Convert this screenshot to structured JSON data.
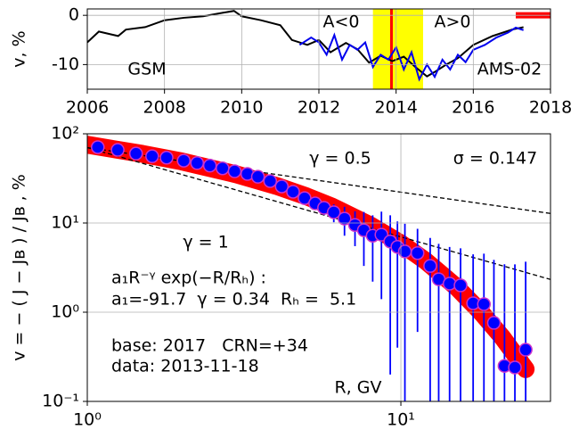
{
  "chart_data": [
    {
      "type": "line",
      "ylabel": "v, %",
      "xlim": [
        2006,
        2018
      ],
      "xticks": [
        2006,
        2008,
        2010,
        2012,
        2014,
        2016,
        2018
      ],
      "ylim": [
        -15,
        1.3
      ],
      "yticks": [
        -10,
        0
      ],
      "grid": true,
      "series": [
        {
          "name": "GSM",
          "color": "#000000",
          "x": [
            2006,
            2006.3,
            2006.8,
            2007,
            2007.5,
            2008,
            2008.5,
            2009,
            2009.5,
            2009.8,
            2010,
            2010.5,
            2011,
            2011.3,
            2011.7,
            2012,
            2012.3,
            2012.7,
            2013,
            2013.3,
            2013.6,
            2013.9,
            2014.2,
            2014.5,
            2014.8,
            2015,
            2015.3,
            2015.6,
            2016,
            2016.5,
            2017,
            2017.3
          ],
          "values": [
            -5.5,
            -3.3,
            -4.2,
            -2.9,
            -2.4,
            -1,
            -0.5,
            -0.2,
            0.5,
            0.9,
            -0.2,
            -1,
            -2,
            -5,
            -6,
            -5,
            -7.5,
            -5.6,
            -6.9,
            -9.6,
            -8.2,
            -9.3,
            -8.4,
            -10.5,
            -12.4,
            -11.5,
            -10,
            -8.7,
            -6,
            -4.2,
            -2.9,
            -2.4
          ]
        },
        {
          "name": "AMS-02",
          "color": "#0000ee",
          "x": [
            2011.5,
            2011.8,
            2012.0,
            2012.2,
            2012.4,
            2012.6,
            2012.8,
            2013.0,
            2013.2,
            2013.4,
            2013.6,
            2013.8,
            2014.0,
            2014.2,
            2014.4,
            2014.6,
            2014.8,
            2015.0,
            2015.2,
            2015.4,
            2015.6,
            2015.8,
            2016.0,
            2016.3,
            2016.6,
            2016.9,
            2017.1,
            2017.3
          ],
          "values": [
            -6,
            -4.5,
            -5.5,
            -8,
            -4,
            -9,
            -6,
            -7,
            -5.5,
            -10.5,
            -8,
            -9,
            -6.5,
            -11,
            -7.5,
            -13,
            -10,
            -12.5,
            -9,
            -11,
            -8,
            -9.5,
            -7,
            -6,
            -4.5,
            -3.5,
            -2.5,
            -3
          ]
        }
      ],
      "shaded_region": {
        "x": [
          2013.4,
          2014.7
        ],
        "color": "#ffff00"
      },
      "vline": {
        "x": 2013.88,
        "color": "#ff0000"
      },
      "highlight": {
        "x": [
          2017.1,
          2018
        ],
        "value": 0,
        "color": "#ff0000"
      },
      "annotations": [
        "A<0",
        "A>0"
      ]
    },
    {
      "type": "scatter",
      "ylabel": "v = − ( J − Jʙ ) / Jʙ , %",
      "xscale": "log",
      "yscale": "log",
      "xlim": [
        1,
        30
      ],
      "xticks": [
        {
          "value": 1,
          "label": "10⁰"
        },
        {
          "value": 10,
          "label": "10¹"
        }
      ],
      "ylim": [
        0.1,
        100
      ],
      "yticks": [
        {
          "value": 0.1,
          "label": "10⁻¹"
        },
        {
          "value": 1,
          "label": "10⁰"
        },
        {
          "value": 10,
          "label": "10¹"
        },
        {
          "value": 100,
          "label": "10²"
        }
      ],
      "grid": true,
      "series": [
        {
          "kind": "band",
          "color": "#ff0000",
          "x": [
            1,
            1.5,
            2,
            3,
            4,
            5,
            6,
            8,
            10,
            12,
            15,
            18,
            21,
            25
          ],
          "values": [
            75.4,
            59.5,
            49.0,
            35.0,
            26.1,
            19.9,
            15.4,
            9.4,
            5.9,
            3.75,
            1.93,
            1.0,
            0.53,
            0.23
          ]
        },
        {
          "kind": "dashed",
          "color": "#000000",
          "x": [
            1,
            30
          ],
          "values": [
            70,
            12.8
          ]
        },
        {
          "kind": "dashed",
          "color": "#000000",
          "x": [
            1,
            30
          ],
          "values": [
            70,
            2.33
          ]
        },
        {
          "kind": "points",
          "color": "#0000ff",
          "edgecolor": "#cc33cc",
          "x": [
            1.08,
            1.25,
            1.43,
            1.61,
            1.79,
            2.03,
            2.24,
            2.46,
            2.7,
            2.95,
            3.24,
            3.5,
            3.83,
            4.17,
            4.53,
            4.93,
            5.33,
            5.69,
            6.11,
            6.61,
            7.14,
            7.62,
            8.13,
            8.67,
            9.25,
            9.75,
            10.3,
            11.3,
            12.4,
            13.2,
            14.3,
            15.5,
            17.0,
            18.4,
            19.8,
            21.4,
            23.1,
            25.0
          ],
          "values": [
            70.8,
            66,
            60,
            56,
            54,
            50,
            47,
            44,
            41,
            38,
            35.5,
            33,
            29.5,
            25.7,
            22.4,
            19,
            16.6,
            14.8,
            13.2,
            11.2,
            9.5,
            8.3,
            7.2,
            7.4,
            6.2,
            5.4,
            4.8,
            4.6,
            3.3,
            2.34,
            2.09,
            2.0,
            1.26,
            1.23,
            0.76,
            0.25,
            0.24,
            0.38
          ],
          "errors": [
            1,
            1,
            1,
            1,
            1,
            1,
            1,
            1,
            1,
            1,
            1,
            1,
            1,
            1,
            1.2,
            1.5,
            2,
            2.5,
            3,
            4,
            4,
            5,
            5,
            6,
            6,
            5,
            5,
            4,
            3.5,
            3.5,
            3.3,
            3.2,
            3.2,
            3.3,
            3.1,
            3.2,
            3.2,
            3.3
          ]
        }
      ],
      "annotations": [
        "γ = 0.5",
        "σ = 0.147",
        "γ = 1",
        "a₁R⁻ᵞ exp(−R/Rₕ) :",
        "a₁=-91.7  γ = 0.34  Rₕ =  5.1",
        "base: 2017   CRN=+34",
        "data: 2013-11-18",
        "R, GV"
      ]
    }
  ]
}
